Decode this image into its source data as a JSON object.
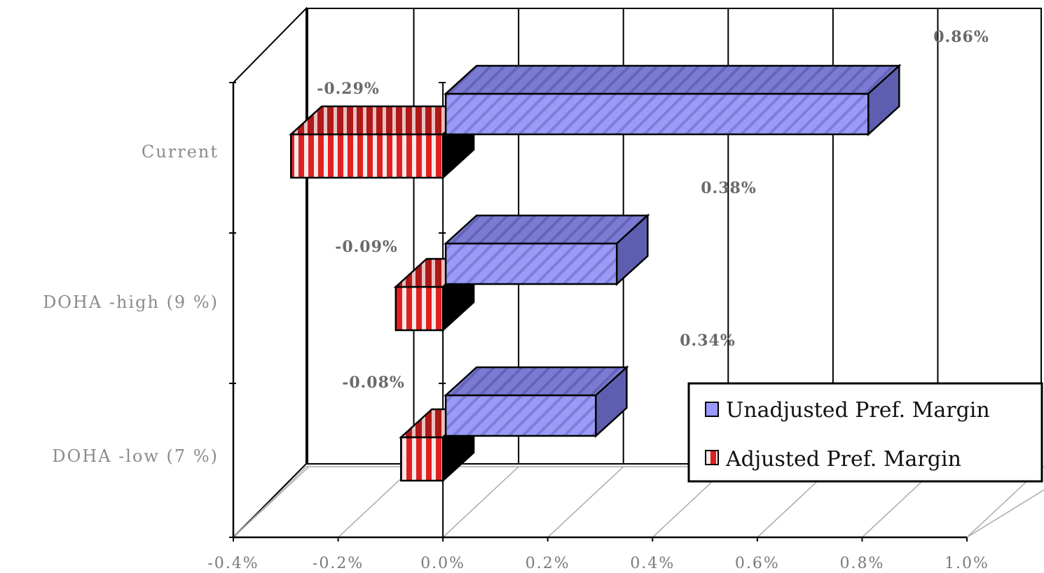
{
  "chart_data": {
    "type": "bar",
    "orientation": "horizontal",
    "three_d": true,
    "categories": [
      "Current",
      "DOHA -high (9%)",
      "DOHA -low (7%)"
    ],
    "series": [
      {
        "name": "Unadjusted Pref. Margin",
        "values": [
          0.86,
          0.38,
          0.34
        ],
        "color": "#9999ff",
        "labels": [
          "0.86%",
          "0.38%",
          "0.34%"
        ]
      },
      {
        "name": "Adjusted Pref. Margin",
        "values": [
          -0.29,
          -0.09,
          -0.08
        ],
        "color": "#dd2222",
        "labels": [
          "-0.29%",
          "-0.09%",
          "-0.08%"
        ]
      }
    ],
    "xlim": [
      -0.4,
      1.0
    ],
    "x_ticks": [
      "-0.4%",
      "-0.2%",
      "0.0%",
      "0.2%",
      "0.4%",
      "0.6%",
      "0.8%",
      "1.0%"
    ],
    "grid": true,
    "legend_position": "bottom-right"
  },
  "category_labels": [
    "Current",
    "DOHA -high (9 %)",
    "DOHA -low (7 %)"
  ]
}
